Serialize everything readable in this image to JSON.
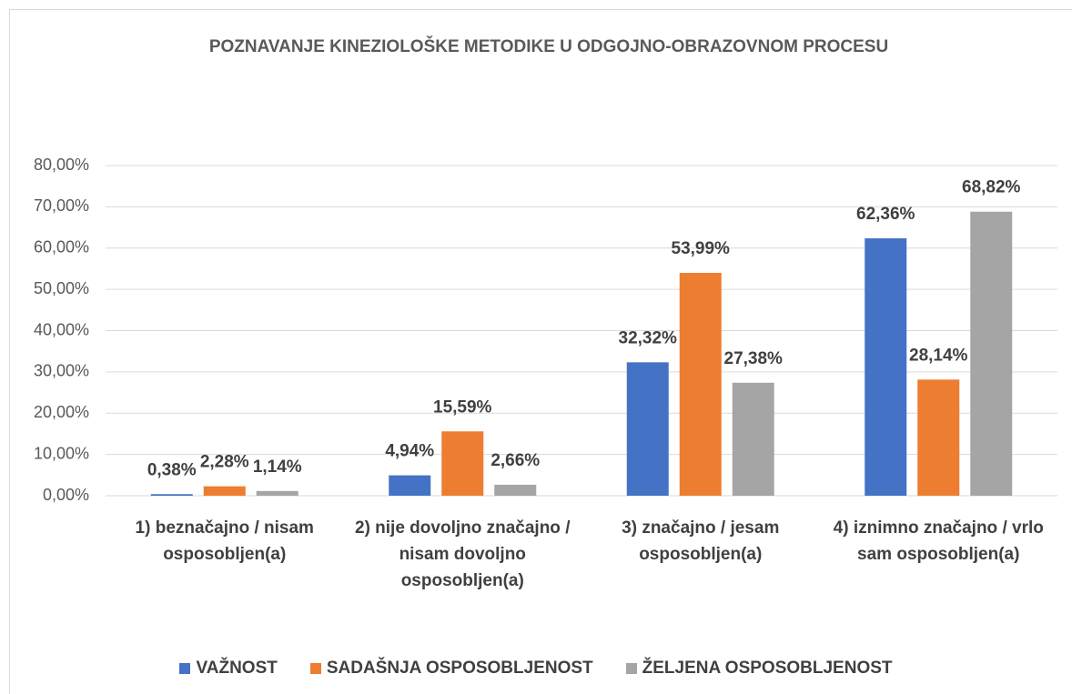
{
  "chart_data": {
    "type": "bar",
    "title": "POZNAVANJE KINEZIOLOŠKE METODIKE U ODGOJNO-OBRAZOVNOM PROCESU",
    "categories": [
      "1) beznačajno / nisam osposobljen(a)",
      "2) nije dovoljno značajno / nisam dovoljno osposobljen(a)",
      "3) značajno / jesam osposobljen(a)",
      "4) iznimno značajno / vrlo sam osposobljen(a)"
    ],
    "series": [
      {
        "name": "VAŽNOST",
        "color": "#4472c4",
        "values": [
          0.38,
          4.94,
          32.32,
          62.36
        ],
        "value_labels": [
          "0,38%",
          "4,94%",
          "32,32%",
          "62,36%"
        ]
      },
      {
        "name": "SADAŠNJA OSPOSOBLJENOST",
        "color": "#ed7d31",
        "values": [
          2.28,
          15.59,
          53.99,
          28.14
        ],
        "value_labels": [
          "2,28%",
          "15,59%",
          "53,99%",
          "28,14%"
        ]
      },
      {
        "name": "ŽELJENA OSPOSOBLJENOST",
        "color": "#a5a5a5",
        "values": [
          1.14,
          2.66,
          27.38,
          68.82
        ],
        "value_labels": [
          "1,14%",
          "2,66%",
          "27,38%",
          "68,82%"
        ]
      }
    ],
    "ylim": [
      0,
      80
    ],
    "yticks": [
      {
        "value": 0,
        "label": "0,00%"
      },
      {
        "value": 10,
        "label": "10,00%"
      },
      {
        "value": 20,
        "label": "20,00%"
      },
      {
        "value": 30,
        "label": "30,00%"
      },
      {
        "value": 40,
        "label": "40,00%"
      },
      {
        "value": 50,
        "label": "50,00%"
      },
      {
        "value": 60,
        "label": "60,00%"
      },
      {
        "value": 70,
        "label": "70,00%"
      },
      {
        "value": 80,
        "label": "80,00%"
      }
    ],
    "grid": true,
    "legend": "bottom"
  }
}
